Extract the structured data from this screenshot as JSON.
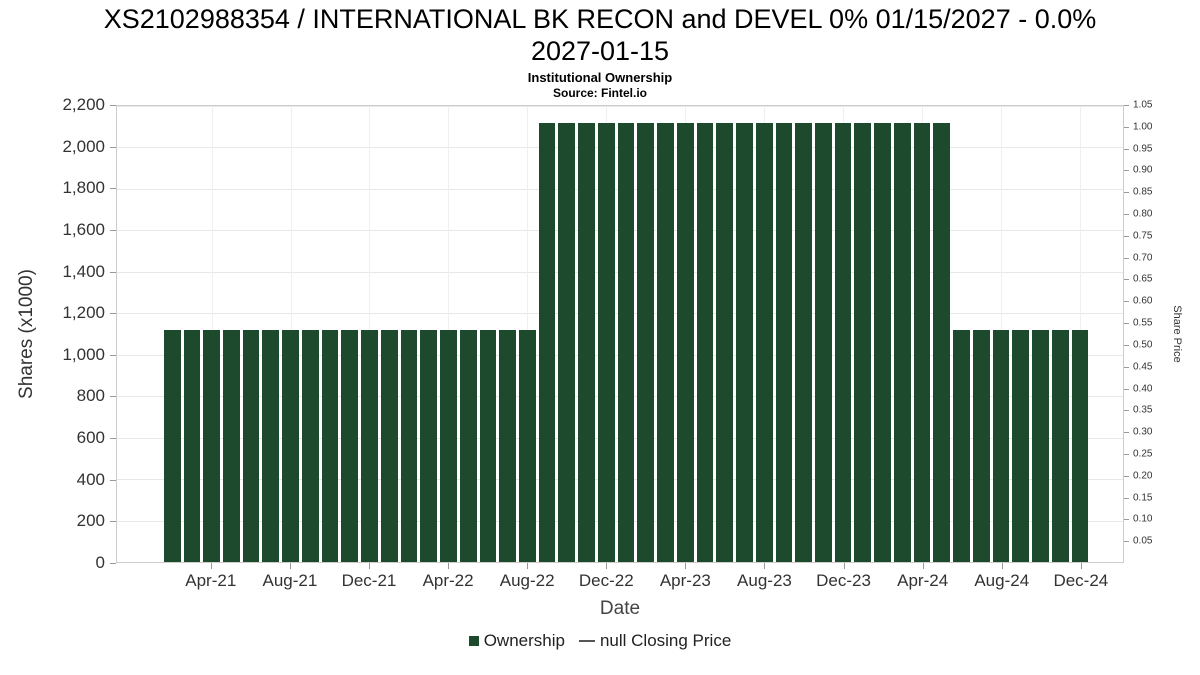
{
  "header": {
    "title_line1": "XS2102988354 / INTERNATIONAL BK RECON and DEVEL 0% 01/15/2027 - 0.0%",
    "title_line2": "2027-01-15",
    "subtitle": "Institutional Ownership",
    "source": "Source: Fintel.io"
  },
  "legend": {
    "items": [
      {
        "label": "Ownership",
        "marker": "square",
        "color": "#1d4a2c"
      },
      {
        "label": "null Closing Price",
        "marker": "dash",
        "color": "#555555"
      }
    ]
  },
  "chart_data": {
    "type": "bar",
    "title": "XS2102988354 / INTERNATIONAL BK RECON and DEVEL 0% 01/15/2027 - 0.0% 2027-01-15",
    "subtitle": "Institutional Ownership",
    "source": "Source: Fintel.io",
    "xlabel": "Date",
    "ylabel": "Shares (x1000)",
    "y2label": "Share Price",
    "ylim_left": [
      0,
      2200
    ],
    "ylim_right": [
      0,
      1.05
    ],
    "grid": true,
    "legend_position": "bottom",
    "bar_color": "#1d4a2c",
    "categories": [
      "Feb-21",
      "Mar-21",
      "Apr-21",
      "May-21",
      "Jun-21",
      "Jul-21",
      "Aug-21",
      "Sep-21",
      "Oct-21",
      "Nov-21",
      "Dec-21",
      "Jan-22",
      "Feb-22",
      "Mar-22",
      "Apr-22",
      "May-22",
      "Jun-22",
      "Jul-22",
      "Aug-22",
      "Sep-22",
      "Oct-22",
      "Nov-22",
      "Dec-22",
      "Jan-23",
      "Feb-23",
      "Mar-23",
      "Apr-23",
      "May-23",
      "Jun-23",
      "Jul-23",
      "Aug-23",
      "Sep-23",
      "Oct-23",
      "Nov-23",
      "Dec-23",
      "Jan-24",
      "Feb-24",
      "Mar-24",
      "Apr-24",
      "May-24",
      "Jun-24",
      "Jul-24",
      "Aug-24",
      "Sep-24",
      "Oct-24",
      "Nov-24",
      "Dec-24"
    ],
    "series": [
      {
        "name": "Ownership",
        "axis": "left",
        "values": [
          1120,
          1120,
          1120,
          1120,
          1120,
          1120,
          1120,
          1120,
          1120,
          1120,
          1120,
          1120,
          1120,
          1120,
          1120,
          1120,
          1120,
          1120,
          1120,
          2120,
          2120,
          2120,
          2120,
          2120,
          2120,
          2120,
          2120,
          2120,
          2120,
          2120,
          2120,
          2120,
          2120,
          2120,
          2120,
          2120,
          2120,
          2120,
          2120,
          2120,
          1120,
          1120,
          1120,
          1120,
          1120,
          1120,
          1120
        ]
      },
      {
        "name": "null Closing Price",
        "axis": "right",
        "values": []
      }
    ],
    "left_tick_values": [
      0,
      200,
      400,
      600,
      800,
      1000,
      1200,
      1400,
      1600,
      1800,
      2000,
      2200
    ],
    "left_tick_labels": [
      "0",
      "200",
      "400",
      "600",
      "800",
      "1,000",
      "1,200",
      "1,400",
      "1,600",
      "1,800",
      "2,000",
      "2,200"
    ],
    "right_tick_values": [
      0.05,
      0.1,
      0.15,
      0.2,
      0.25,
      0.3,
      0.35,
      0.4,
      0.45,
      0.5,
      0.55,
      0.6,
      0.65,
      0.7,
      0.75,
      0.8,
      0.85,
      0.9,
      0.95,
      1.0,
      1.05
    ],
    "right_tick_labels": [
      "0.05",
      "0.10",
      "0.15",
      "0.20",
      "0.25",
      "0.30",
      "0.35",
      "0.40",
      "0.45",
      "0.50",
      "0.55",
      "0.60",
      "0.65",
      "0.70",
      "0.75",
      "0.80",
      "0.85",
      "0.90",
      "0.95",
      "1.00",
      "1.05"
    ],
    "x_ticks": {
      "labels": [
        "Apr-21",
        "Aug-21",
        "Dec-21",
        "Apr-22",
        "Aug-22",
        "Dec-22",
        "Apr-23",
        "Aug-23",
        "Dec-23",
        "Apr-24",
        "Aug-24",
        "Dec-24"
      ],
      "indices": [
        2,
        6,
        10,
        14,
        18,
        22,
        26,
        30,
        34,
        38,
        42,
        46
      ]
    }
  }
}
